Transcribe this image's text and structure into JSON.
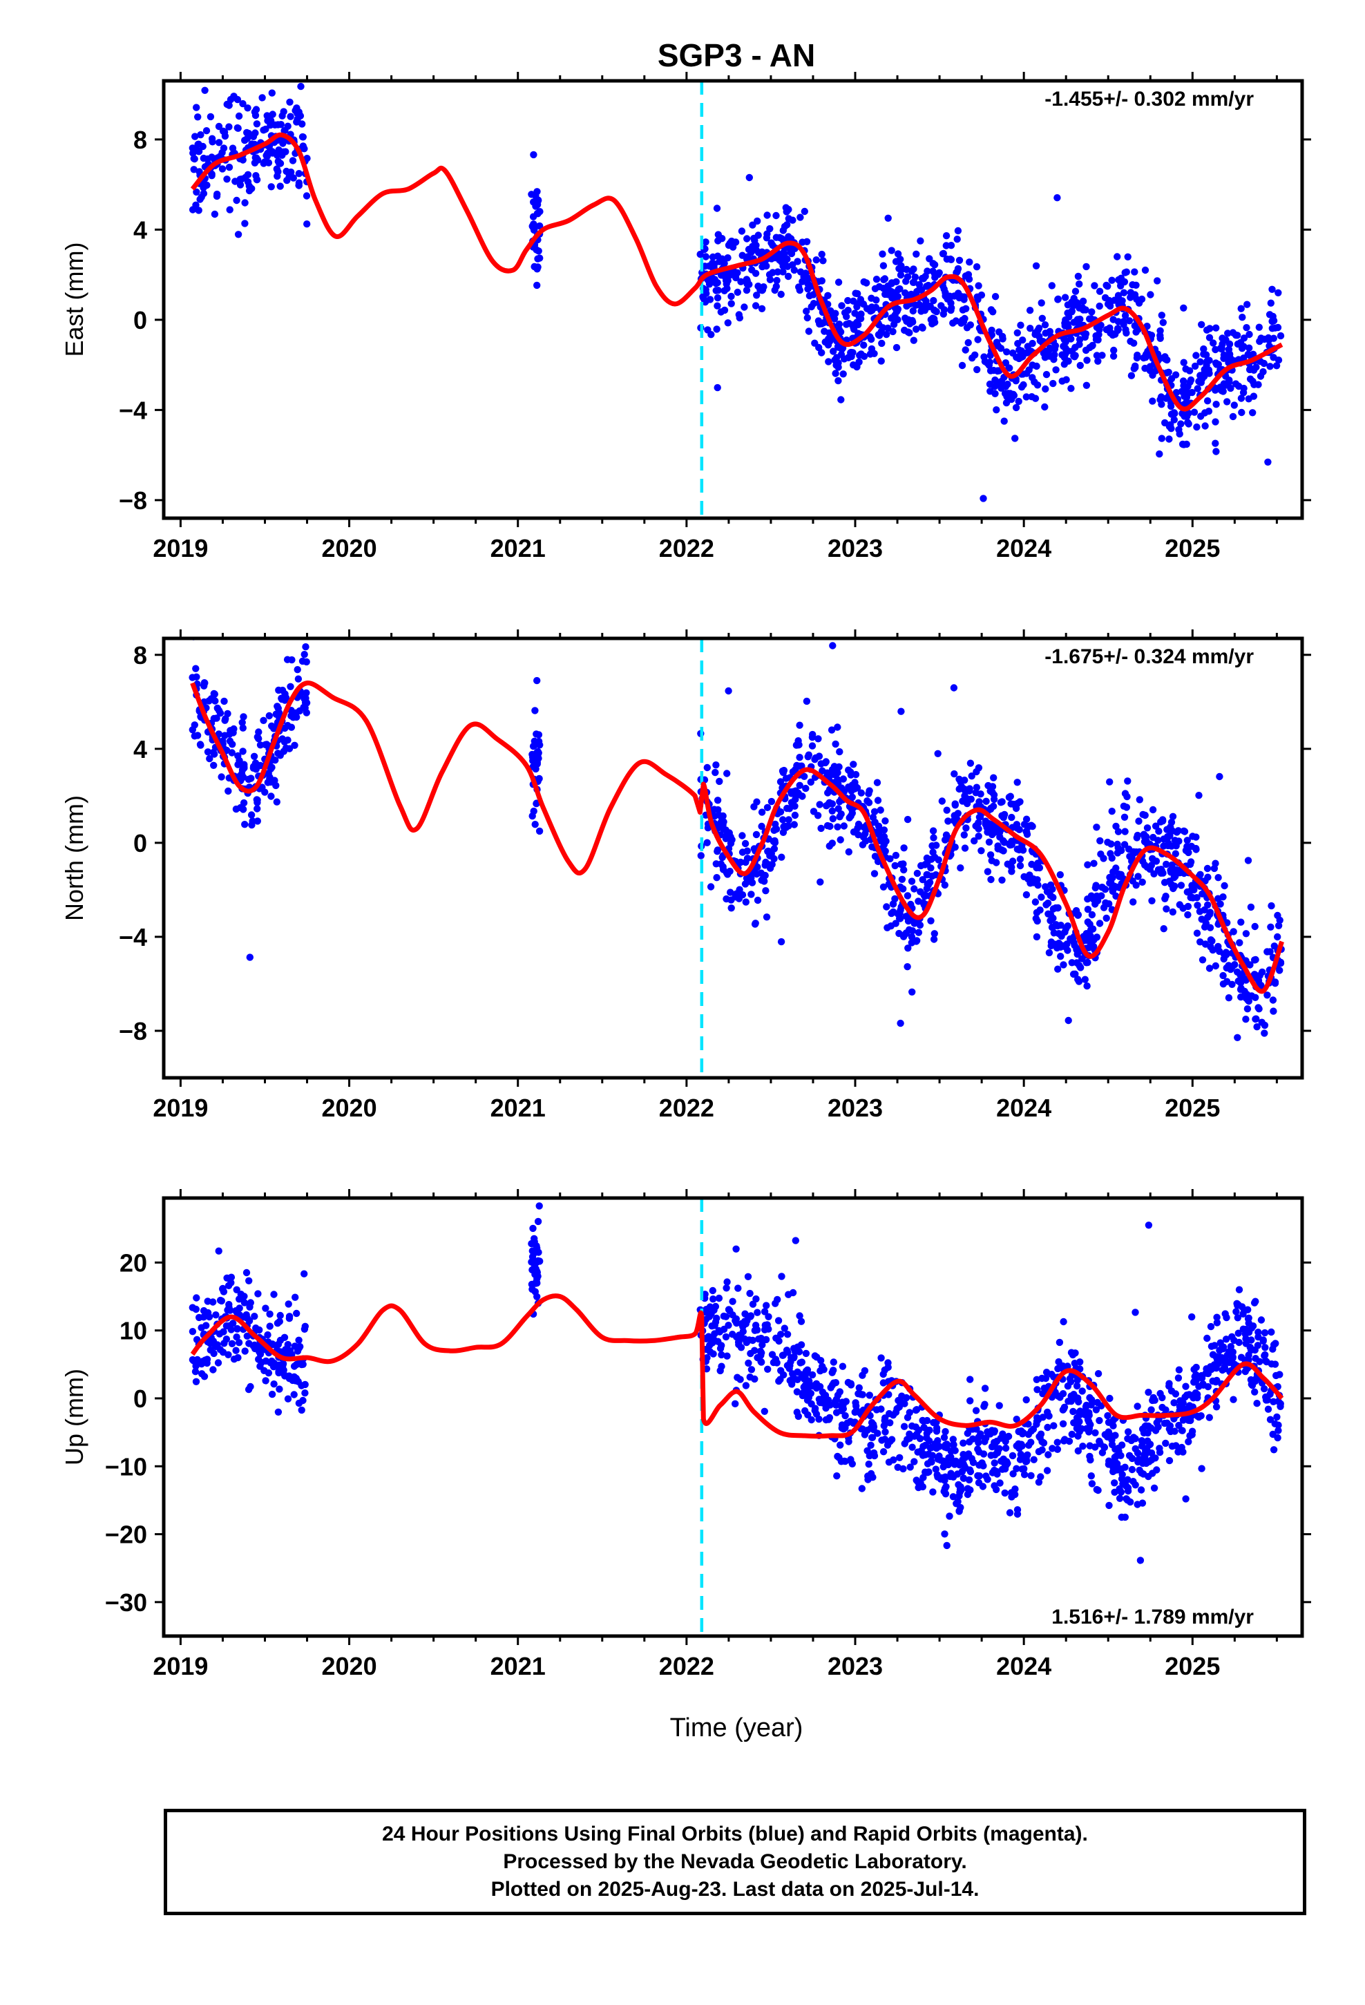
{
  "title": "SGP3 - AN",
  "x_axis_label": "Time (year)",
  "footer": [
    "24 Hour Positions Using Final Orbits (blue) and Rapid Orbits (magenta).",
    "Processed by the Nevada Geodetic Laboratory.",
    "Plotted on 2025-Aug-23. Last data on 2025-Jul-14."
  ],
  "colors": {
    "observations": "#0000ff",
    "model": "#ff0000",
    "event_line": "#00e5ff",
    "frame": "#000000"
  },
  "chart_data": [
    {
      "type": "scatter",
      "ylabel": "East (mm)",
      "rate_text": "-1.455+/- 0.302 mm/yr",
      "rate_position": "top-right",
      "xlim": [
        2018.9,
        2025.65
      ],
      "ylim": [
        -8.8,
        10.6
      ],
      "x_ticks": [
        2019,
        2020,
        2021,
        2022,
        2023,
        2024,
        2025
      ],
      "y_ticks": [
        -8,
        -4,
        0,
        4,
        8
      ],
      "event_line_x": 2022.09,
      "data_segments": [
        [
          2019.07,
          2019.75
        ],
        [
          2021.08,
          2021.13
        ],
        [
          2022.08,
          2025.53
        ]
      ],
      "series": [
        {
          "role": "observations",
          "x": [
            2019.1,
            2019.2,
            2019.3,
            2019.4,
            2019.5,
            2019.6,
            2019.7,
            2021.1,
            2022.1,
            2022.2,
            2022.3,
            2022.4,
            2022.5,
            2022.6,
            2022.7,
            2022.8,
            2022.9,
            2023.0,
            2023.1,
            2023.2,
            2023.3,
            2023.4,
            2023.5,
            2023.6,
            2023.7,
            2023.8,
            2023.9,
            2024.0,
            2024.1,
            2024.2,
            2024.3,
            2024.4,
            2024.5,
            2024.6,
            2024.7,
            2024.8,
            2024.9,
            2025.0,
            2025.1,
            2025.2,
            2025.3,
            2025.4,
            2025.5
          ],
          "y": [
            6.4,
            7.0,
            7.3,
            7.5,
            7.6,
            8.1,
            7.3,
            3.9,
            1.8,
            2.2,
            2.3,
            2.6,
            2.7,
            3.3,
            2.2,
            0.4,
            -1.0,
            -0.8,
            0.0,
            0.7,
            0.9,
            1.2,
            1.6,
            1.8,
            0.3,
            -1.5,
            -2.5,
            -1.8,
            -1.0,
            -0.6,
            -0.4,
            -0.1,
            0.3,
            0.5,
            -0.4,
            -2.1,
            -3.9,
            -3.4,
            -2.3,
            -2.0,
            -1.9,
            -1.5,
            -1.1
          ]
        },
        {
          "role": "model",
          "x": [
            2019.07,
            2019.2,
            2019.35,
            2019.5,
            2019.6,
            2019.7,
            2019.8,
            2019.92,
            2020.05,
            2020.2,
            2020.35,
            2020.5,
            2020.57,
            2020.7,
            2020.85,
            2020.97,
            2021.05,
            2021.15,
            2021.3,
            2021.45,
            2021.57,
            2021.7,
            2021.82,
            2021.93,
            2022.05,
            2022.12,
            2022.3,
            2022.45,
            2022.6,
            2022.7,
            2022.8,
            2022.92,
            2023.05,
            2023.2,
            2023.35,
            2023.45,
            2023.55,
            2023.65,
            2023.8,
            2023.92,
            2024.05,
            2024.2,
            2024.35,
            2024.5,
            2024.6,
            2024.7,
            2024.8,
            2024.93,
            2025.05,
            2025.2,
            2025.35,
            2025.53
          ],
          "y": [
            5.8,
            6.9,
            7.3,
            7.8,
            8.2,
            7.5,
            5.3,
            3.7,
            4.6,
            5.6,
            5.8,
            6.5,
            6.6,
            4.8,
            2.6,
            2.2,
            3.1,
            4.0,
            4.4,
            5.1,
            5.3,
            3.6,
            1.5,
            0.7,
            1.4,
            2.0,
            2.4,
            2.7,
            3.4,
            2.9,
            0.8,
            -1.0,
            -0.7,
            0.6,
            0.9,
            1.3,
            1.9,
            1.5,
            -1.0,
            -2.5,
            -1.6,
            -0.7,
            -0.4,
            0.2,
            0.5,
            -0.3,
            -2.1,
            -3.9,
            -3.4,
            -2.2,
            -1.8,
            -1.1
          ]
        }
      ]
    },
    {
      "type": "scatter",
      "ylabel": "North (mm)",
      "rate_text": "-1.675+/- 0.324 mm/yr",
      "rate_position": "top-right",
      "xlim": [
        2018.9,
        2025.65
      ],
      "ylim": [
        -10.0,
        8.7
      ],
      "x_ticks": [
        2019,
        2020,
        2021,
        2022,
        2023,
        2024,
        2025
      ],
      "y_ticks": [
        -8,
        -4,
        0,
        4,
        8
      ],
      "event_line_x": 2022.09,
      "data_segments": [
        [
          2019.07,
          2019.75
        ],
        [
          2021.08,
          2021.13
        ],
        [
          2022.08,
          2025.53
        ]
      ],
      "series": [
        {
          "role": "observations",
          "x": [
            2019.1,
            2019.2,
            2019.3,
            2019.4,
            2019.5,
            2019.6,
            2019.7,
            2021.1,
            2022.1,
            2022.2,
            2022.3,
            2022.4,
            2022.5,
            2022.6,
            2022.7,
            2022.8,
            2022.9,
            2023.0,
            2023.1,
            2023.2,
            2023.3,
            2023.4,
            2023.5,
            2023.6,
            2023.7,
            2023.8,
            2023.9,
            2024.0,
            2024.1,
            2024.2,
            2024.3,
            2024.4,
            2024.5,
            2024.6,
            2024.7,
            2024.8,
            2024.9,
            2025.0,
            2025.1,
            2025.2,
            2025.3,
            2025.4,
            2025.5
          ],
          "y": [
            6.0,
            4.8,
            3.8,
            2.4,
            3.2,
            5.2,
            6.5,
            3.5,
            1.5,
            0.3,
            -1.2,
            -1.4,
            0.0,
            2.0,
            3.1,
            2.9,
            2.2,
            1.8,
            0.5,
            -1.5,
            -3.2,
            -2.4,
            -0.8,
            1.3,
            1.3,
            0.9,
            0.4,
            -0.1,
            -2.0,
            -3.8,
            -4.8,
            -3.6,
            -1.6,
            -0.2,
            -0.1,
            -0.8,
            -0.9,
            -1.5,
            -3.0,
            -4.6,
            -5.4,
            -6.4,
            -4.4
          ]
        },
        {
          "role": "model",
          "x": [
            2019.07,
            2019.15,
            2019.25,
            2019.35,
            2019.45,
            2019.55,
            2019.65,
            2019.75,
            2019.9,
            2020.1,
            2020.3,
            2020.4,
            2020.55,
            2020.72,
            2020.88,
            2021.05,
            2021.15,
            2021.3,
            2021.4,
            2021.55,
            2021.72,
            2021.88,
            2022.05,
            2022.08,
            2022.1,
            2022.15,
            2022.25,
            2022.35,
            2022.45,
            2022.55,
            2022.7,
            2022.85,
            2022.95,
            2023.05,
            2023.15,
            2023.3,
            2023.4,
            2023.5,
            2023.6,
            2023.72,
            2023.82,
            2023.95,
            2024.1,
            2024.25,
            2024.38,
            2024.5,
            2024.6,
            2024.72,
            2024.85,
            2025.0,
            2025.1,
            2025.2,
            2025.3,
            2025.42,
            2025.53
          ],
          "y": [
            6.8,
            5.3,
            3.8,
            2.4,
            2.4,
            4.2,
            6.0,
            6.8,
            6.2,
            5.2,
            1.6,
            0.6,
            3.0,
            5.0,
            4.4,
            3.3,
            1.5,
            -0.8,
            -1.1,
            1.5,
            3.4,
            2.9,
            2.0,
            1.3,
            2.5,
            0.8,
            -0.6,
            -1.3,
            0.0,
            1.8,
            3.1,
            2.5,
            1.8,
            1.3,
            -0.5,
            -2.7,
            -3.1,
            -1.5,
            0.6,
            1.4,
            1.0,
            0.3,
            -0.5,
            -2.6,
            -4.8,
            -3.8,
            -1.8,
            -0.3,
            -0.5,
            -1.4,
            -2.2,
            -3.8,
            -5.2,
            -6.3,
            -4.2
          ]
        }
      ]
    },
    {
      "type": "scatter",
      "ylabel": "Up (mm)",
      "rate_text": "1.516+/- 1.789 mm/yr",
      "rate_position": "bottom-right",
      "xlim": [
        2018.9,
        2025.65
      ],
      "ylim": [
        -35.0,
        29.5
      ],
      "x_ticks": [
        2019,
        2020,
        2021,
        2022,
        2023,
        2024,
        2025
      ],
      "y_ticks": [
        -30,
        -20,
        -10,
        0,
        10,
        20
      ],
      "event_line_x": 2022.09,
      "data_segments": [
        [
          2019.07,
          2019.75
        ],
        [
          2021.08,
          2021.13
        ],
        [
          2022.08,
          2025.53
        ]
      ],
      "series": [
        {
          "role": "observations",
          "x": [
            2019.1,
            2019.2,
            2019.3,
            2019.4,
            2019.5,
            2019.6,
            2019.7,
            2021.1,
            2022.1,
            2022.2,
            2022.3,
            2022.4,
            2022.5,
            2022.6,
            2022.7,
            2022.8,
            2022.9,
            2023.0,
            2023.1,
            2023.2,
            2023.3,
            2023.4,
            2023.5,
            2023.6,
            2023.7,
            2023.8,
            2023.9,
            2024.0,
            2024.1,
            2024.2,
            2024.3,
            2024.4,
            2024.5,
            2024.6,
            2024.7,
            2024.8,
            2024.9,
            2025.0,
            2025.1,
            2025.2,
            2025.3,
            2025.4,
            2025.5
          ],
          "y": [
            7.5,
            10.5,
            13.0,
            10.0,
            6.5,
            6.0,
            5.5,
            20.0,
            10.0,
            10.0,
            9.5,
            8.5,
            7.5,
            5.5,
            3.0,
            0.0,
            -3.0,
            -3.5,
            -5.0,
            -2.0,
            -4.0,
            -6.0,
            -8.0,
            -12.0,
            -8.0,
            -6.0,
            -12.0,
            -8.0,
            -3.0,
            0.0,
            0.0,
            -4.0,
            -6.0,
            -12.0,
            -8.0,
            -4.0,
            -3.0,
            0.0,
            3.0,
            7.0,
            9.0,
            6.0,
            -1.0
          ]
        },
        {
          "role": "model",
          "x": [
            2019.07,
            2019.15,
            2019.3,
            2019.45,
            2019.6,
            2019.75,
            2019.9,
            2020.05,
            2020.2,
            2020.3,
            2020.45,
            2020.6,
            2020.75,
            2020.9,
            2021.05,
            2021.15,
            2021.25,
            2021.35,
            2021.5,
            2021.65,
            2021.8,
            2021.95,
            2022.05,
            2022.09,
            2022.1,
            2022.2,
            2022.3,
            2022.4,
            2022.55,
            2022.7,
            2022.85,
            2022.98,
            2023.1,
            2023.25,
            2023.35,
            2023.5,
            2023.65,
            2023.8,
            2023.95,
            2024.1,
            2024.25,
            2024.4,
            2024.55,
            2024.7,
            2024.85,
            2025.0,
            2025.12,
            2025.3,
            2025.42,
            2025.53
          ],
          "y": [
            6.5,
            9.0,
            12.0,
            9.0,
            6.0,
            6.0,
            5.5,
            8.0,
            13.0,
            13.0,
            8.0,
            7.0,
            7.5,
            8.0,
            12.0,
            14.5,
            15.0,
            13.0,
            9.0,
            8.5,
            8.5,
            9.0,
            9.5,
            12.0,
            -3.0,
            -1.0,
            1.0,
            -2.0,
            -5.0,
            -5.5,
            -5.5,
            -5.0,
            -1.0,
            2.5,
            0.5,
            -3.0,
            -4.0,
            -3.5,
            -4.0,
            -1.0,
            4.0,
            2.0,
            -2.5,
            -2.5,
            -2.5,
            -2.0,
            0.0,
            5.0,
            3.0,
            0.0
          ]
        }
      ]
    }
  ]
}
